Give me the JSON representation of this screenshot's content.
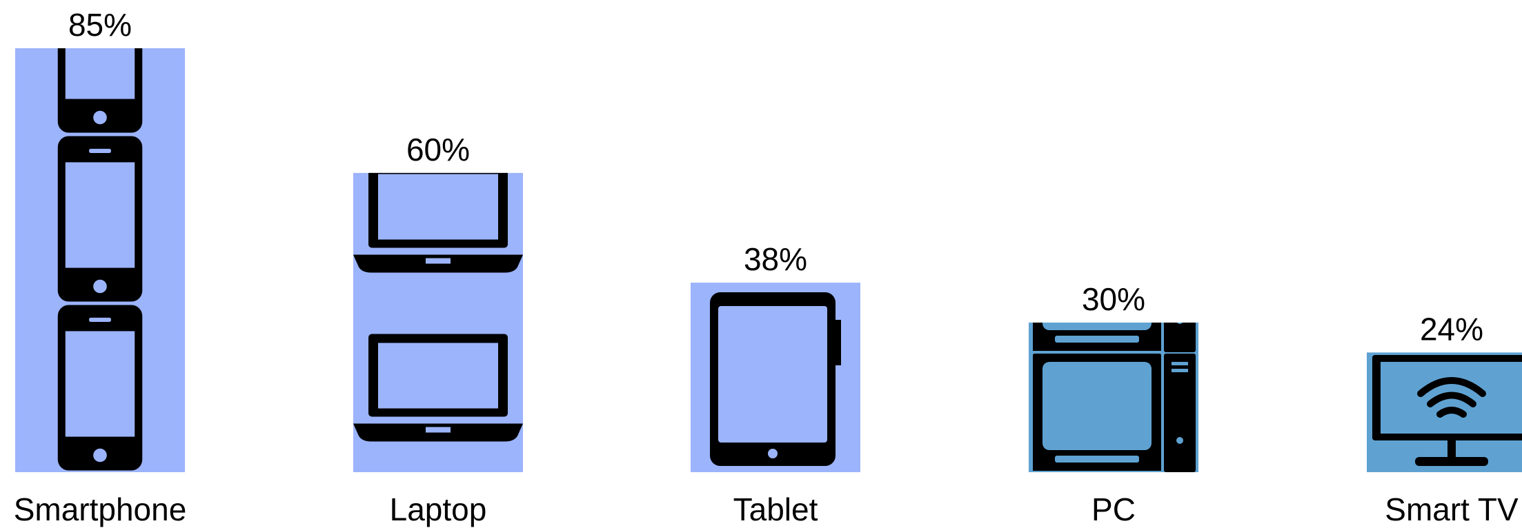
{
  "chart_data": {
    "type": "bar",
    "categories": [
      "Smartphone",
      "Laptop",
      "Tablet",
      "PC",
      "Smart TV"
    ],
    "values": [
      85,
      60,
      38,
      30,
      24
    ],
    "value_labels": [
      "85%",
      "60%",
      "38%",
      "30%",
      "24%"
    ],
    "ylim": [
      0,
      85
    ],
    "grid": false,
    "bar_icons": [
      "smartphone-icon",
      "laptop-icon",
      "tablet-icon",
      "pc-icon",
      "smart-tv-icon"
    ],
    "bar_colors": [
      "#9cb4fc",
      "#9cb4fc",
      "#9cb4fc",
      "#5fa2d2",
      "#5fa2d2"
    ]
  },
  "colors": {
    "icon": "#000000",
    "background": "#ffffff"
  }
}
